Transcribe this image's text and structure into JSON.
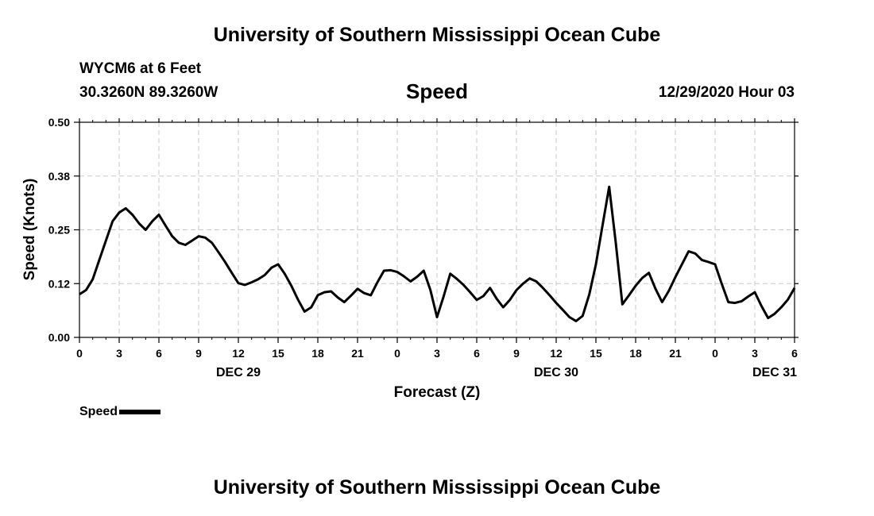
{
  "header": {
    "title": "University of Southern Mississippi Ocean Cube",
    "station": "WYCM6 at 6 Feet",
    "coords": "30.3260N 89.3260W",
    "datetime": "12/29/2020 Hour 03"
  },
  "footer": {
    "title": "University of Southern Mississippi Ocean Cube"
  },
  "legend": {
    "label": "Speed"
  },
  "chart_data": {
    "type": "line",
    "title": "Speed",
    "xlabel": "Forecast (Z)",
    "ylabel": "Speed (Knots)",
    "xlim": [
      0,
      54
    ],
    "ylim": [
      0,
      0.5
    ],
    "grid": true,
    "x_ticks": [
      0,
      3,
      6,
      9,
      12,
      15,
      18,
      21,
      24,
      27,
      30,
      33,
      36,
      39,
      42,
      45,
      48,
      51,
      54
    ],
    "x_tick_labels": [
      "0",
      "3",
      "6",
      "9",
      "12",
      "15",
      "18",
      "21",
      "0",
      "3",
      "6",
      "9",
      "12",
      "15",
      "18",
      "21",
      "0",
      "3",
      "6"
    ],
    "y_ticks": [
      0,
      0.125,
      0.25,
      0.375,
      0.5
    ],
    "y_tick_labels": [
      "0.00",
      "0.12",
      "0.25",
      "0.38",
      "0.50"
    ],
    "date_labels": [
      {
        "x": 12,
        "label": "DEC 29"
      },
      {
        "x": 36,
        "label": "DEC 30"
      },
      {
        "x": 52.5,
        "label": "DEC 31"
      }
    ],
    "series": [
      {
        "name": "Speed",
        "x": [
          0,
          0.5,
          1,
          1.5,
          2,
          2.5,
          3,
          3.5,
          4,
          4.5,
          5,
          5.5,
          6,
          6.5,
          7,
          7.5,
          8,
          8.5,
          9,
          9.5,
          10,
          10.5,
          11,
          11.5,
          12,
          12.5,
          13,
          13.5,
          14,
          14.5,
          15,
          15.5,
          16,
          16.5,
          17,
          17.5,
          18,
          18.5,
          19,
          19.5,
          20,
          20.5,
          21,
          21.5,
          22,
          22.5,
          23,
          23.5,
          24,
          24.5,
          25,
          25.5,
          26,
          26.5,
          27,
          27.5,
          28,
          28.5,
          29,
          29.5,
          30,
          30.5,
          31,
          31.5,
          32,
          32.5,
          33,
          33.5,
          34,
          34.5,
          35,
          35.5,
          36,
          36.5,
          37,
          37.5,
          38,
          38.5,
          39,
          39.5,
          40,
          40.5,
          41,
          41.5,
          42,
          42.5,
          43,
          43.5,
          44,
          44.5,
          45,
          45.5,
          46,
          46.5,
          47,
          47.5,
          48,
          48.5,
          49,
          49.5,
          50,
          50.5,
          51,
          51.5,
          52,
          52.5,
          53,
          53.5,
          54
        ],
        "values": [
          0.1,
          0.11,
          0.135,
          0.18,
          0.225,
          0.27,
          0.29,
          0.3,
          0.285,
          0.265,
          0.25,
          0.27,
          0.285,
          0.26,
          0.235,
          0.22,
          0.215,
          0.225,
          0.235,
          0.232,
          0.22,
          0.198,
          0.175,
          0.15,
          0.126,
          0.122,
          0.128,
          0.135,
          0.145,
          0.162,
          0.17,
          0.148,
          0.12,
          0.088,
          0.06,
          0.07,
          0.098,
          0.105,
          0.107,
          0.093,
          0.082,
          0.097,
          0.113,
          0.103,
          0.098,
          0.128,
          0.155,
          0.156,
          0.152,
          0.142,
          0.13,
          0.141,
          0.155,
          0.11,
          0.047,
          0.095,
          0.148,
          0.136,
          0.122,
          0.105,
          0.087,
          0.096,
          0.115,
          0.09,
          0.07,
          0.087,
          0.11,
          0.125,
          0.137,
          0.13,
          0.115,
          0.098,
          0.08,
          0.064,
          0.047,
          0.038,
          0.05,
          0.1,
          0.17,
          0.26,
          0.35,
          0.22,
          0.077,
          0.098,
          0.12,
          0.138,
          0.15,
          0.113,
          0.082,
          0.108,
          0.14,
          0.17,
          0.2,
          0.195,
          0.18,
          0.175,
          0.17,
          0.125,
          0.082,
          0.08,
          0.084,
          0.095,
          0.105,
          0.073,
          0.045,
          0.055,
          0.07,
          0.088,
          0.115
        ]
      }
    ]
  }
}
